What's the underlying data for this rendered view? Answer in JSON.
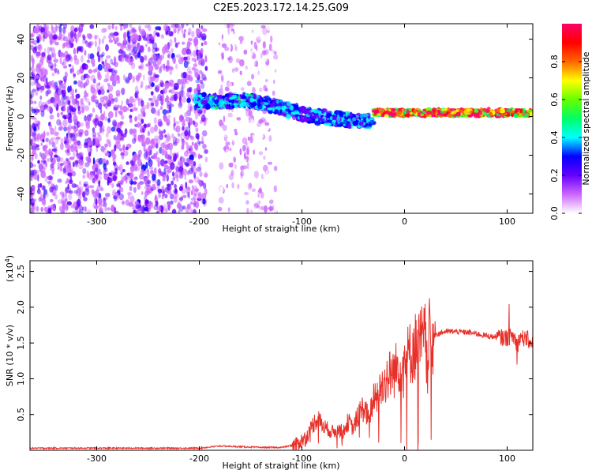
{
  "title": "C2E5.2023.172.14.25.G09",
  "chart_data": [
    {
      "type": "heatmap",
      "xlabel": "Height of straight line (km)",
      "ylabel": "Frequency (Hz)",
      "xlim": [
        -365,
        125
      ],
      "ylim": [
        -50,
        48
      ],
      "x_ticks": [
        -300,
        -200,
        -100,
        0,
        100
      ],
      "y_ticks": [
        -40,
        -20,
        0,
        20,
        40
      ],
      "colorbar": {
        "label": "Normalized spectral amplitude",
        "range": [
          0.0,
          1.0
        ],
        "ticks": [
          "0.0",
          "0.2",
          "0.4",
          "0.6",
          "0.8"
        ],
        "colormap": "rainbow",
        "colors": [
          "#ffffff",
          "#cc66ff",
          "#6600ff",
          "#0000ff",
          "#00ffff",
          "#00ff66",
          "#66ff00",
          "#ffff00",
          "#ff6600",
          "#ff0000",
          "#ff0066"
        ]
      },
      "regions": [
        {
          "x_range": [
            -365,
            -193
          ],
          "freq_range": [
            -50,
            48
          ],
          "amplitude": 0.1,
          "pattern": "scattered noise"
        },
        {
          "x_range": [
            -180,
            -125
          ],
          "freq_range": [
            -50,
            48
          ],
          "amplitude": 0.05,
          "pattern": "sparse noise"
        },
        {
          "x_range": [
            -205,
            -30
          ],
          "freq_center": [
            8,
            8,
            0,
            -3
          ],
          "amplitude": 0.35,
          "pattern": "descending band"
        },
        {
          "x_range": [
            -30,
            125
          ],
          "freq_center": [
            2
          ],
          "amplitude": 0.95,
          "pattern": "steady carrier"
        }
      ]
    },
    {
      "type": "line",
      "xlabel": "Height of straight line (km)",
      "ylabel": "SNR (10 * v/v)",
      "y_multiplier": "(x10",
      "y_multiplier_exp": "4",
      "y_multiplier_close": ")",
      "xlim": [
        -365,
        125
      ],
      "ylim": [
        0,
        2.65
      ],
      "x_ticks": [
        -300,
        -200,
        -100,
        0,
        100
      ],
      "y_ticks": [
        "0.5",
        "1.0",
        "1.5",
        "2.0",
        "2.5"
      ],
      "line_color": "#e8302a",
      "series": [
        {
          "x": [
            -365,
            -300,
            -200,
            -180,
            -140,
            -120,
            -105,
            -95,
            -90,
            -85,
            -80,
            -75,
            -70,
            -65,
            -60,
            -55,
            -50,
            -45,
            -40,
            -35,
            -30,
            -25,
            -20,
            -15,
            -10,
            -5,
            0,
            5,
            10,
            20,
            30,
            40,
            50,
            60,
            70,
            80,
            90,
            100,
            105,
            108,
            110,
            112,
            115,
            120,
            125
          ],
          "y": [
            0.03,
            0.03,
            0.03,
            0.06,
            0.04,
            0.04,
            0.08,
            0.2,
            0.35,
            0.45,
            0.35,
            0.3,
            0.25,
            0.3,
            0.25,
            0.4,
            0.3,
            0.5,
            0.6,
            0.45,
            0.7,
            0.8,
            0.95,
            1.05,
            1.1,
            1.2,
            1.25,
            1.35,
            1.45,
            1.55,
            1.62,
            1.66,
            1.66,
            1.65,
            1.63,
            1.6,
            1.58,
            1.57,
            1.6,
            1.55,
            1.45,
            1.58,
            1.57,
            1.55,
            1.5
          ]
        }
      ]
    }
  ]
}
